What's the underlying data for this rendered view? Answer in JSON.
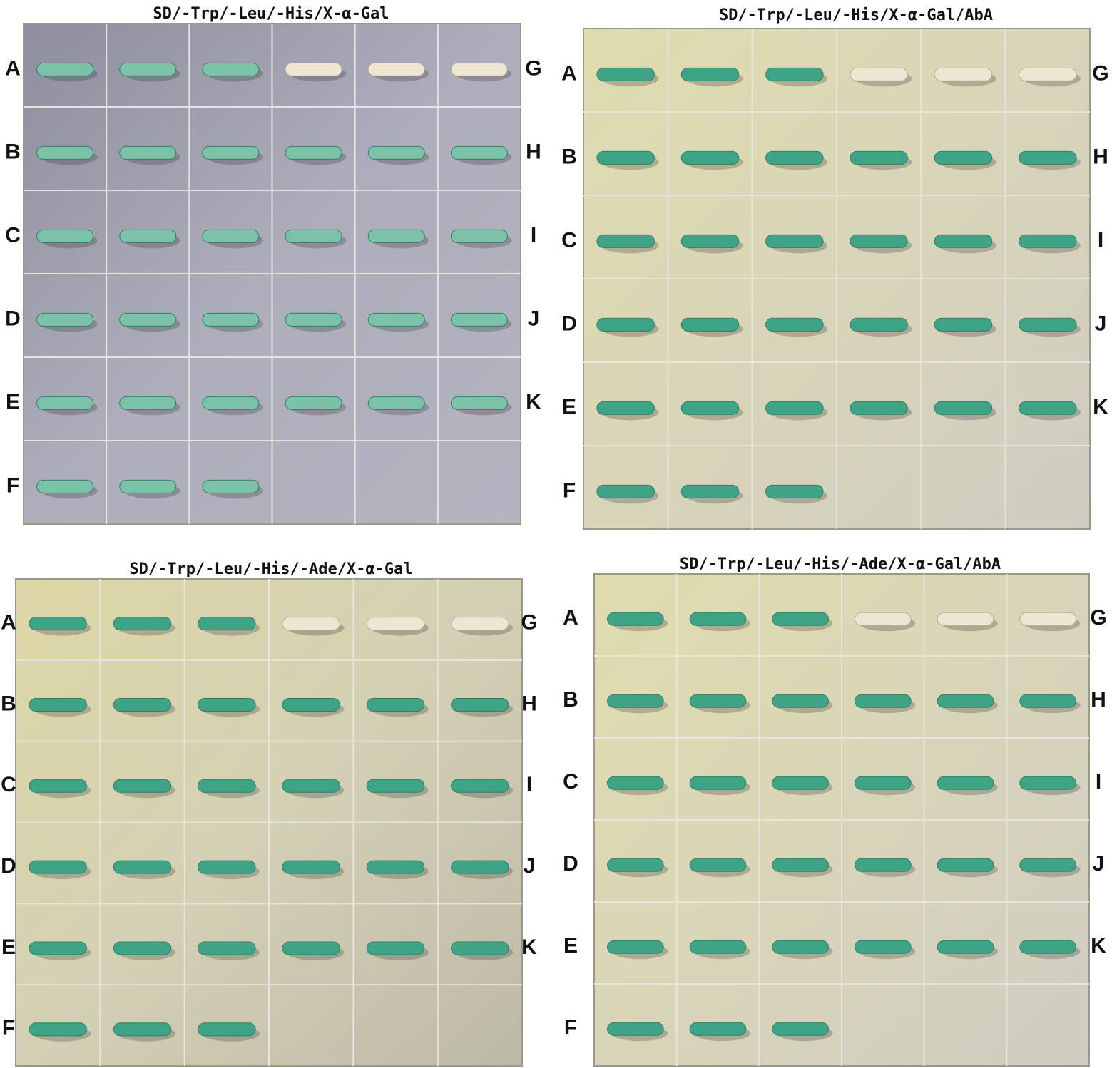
{
  "panels": [
    {
      "title": "SD/-Trp/-Leu/-His/X-α-Gal",
      "left_labels": [
        "A",
        "B",
        "C",
        "D",
        "E",
        "F"
      ],
      "right_labels": [
        "G",
        "H",
        "I",
        "J",
        "K"
      ]
    },
    {
      "title": "SD/-Trp/-Leu/-His/X-α-Gal/AbA",
      "left_labels": [
        "A",
        "B",
        "C",
        "D",
        "E",
        "F"
      ],
      "right_labels": [
        "G",
        "H",
        "I",
        "J",
        "K"
      ]
    },
    {
      "title": "SD/-Trp/-Leu/-His/-Ade/X-α-Gal",
      "left_labels": [
        "A",
        "B",
        "C",
        "D",
        "E",
        "F"
      ],
      "right_labels": [
        "G",
        "H",
        "I",
        "J",
        "K"
      ]
    },
    {
      "title": "SD/-Trp/-Leu/-His/-Ade/X-α-Gal/AbA",
      "left_labels": [
        "A",
        "B",
        "C",
        "D",
        "E",
        "F"
      ],
      "right_labels": [
        "G",
        "H",
        "I",
        "J",
        "K"
      ]
    }
  ]
}
